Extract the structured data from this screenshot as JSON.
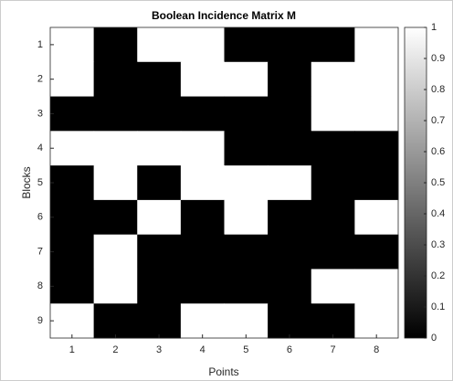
{
  "chart_data": {
    "type": "heatmap",
    "title": "Boolean Incidence Matrix M",
    "xlabel": "Points",
    "ylabel": "Blocks",
    "xticks": [
      1,
      2,
      3,
      4,
      5,
      6,
      7,
      8
    ],
    "yticks": [
      1,
      2,
      3,
      4,
      5,
      6,
      7,
      8,
      9
    ],
    "xlim": [
      0.5,
      8.5
    ],
    "ylim": [
      0.5,
      9.5
    ],
    "y_reversed": true,
    "values": [
      [
        1,
        0,
        1,
        1,
        0,
        0,
        0,
        1
      ],
      [
        1,
        0,
        0,
        1,
        1,
        0,
        1,
        1
      ],
      [
        0,
        0,
        0,
        0,
        0,
        0,
        1,
        1
      ],
      [
        1,
        1,
        1,
        1,
        0,
        0,
        0,
        0
      ],
      [
        0,
        1,
        0,
        1,
        1,
        1,
        0,
        0
      ],
      [
        0,
        0,
        1,
        0,
        1,
        0,
        0,
        1
      ],
      [
        0,
        1,
        0,
        0,
        0,
        0,
        0,
        0
      ],
      [
        0,
        1,
        0,
        0,
        0,
        0,
        1,
        1
      ],
      [
        1,
        0,
        0,
        1,
        1,
        0,
        0,
        1
      ]
    ],
    "colormap": [
      "#000000",
      "#ffffff"
    ],
    "clim": [
      0,
      1
    ],
    "cticks": [
      0,
      0.1,
      0.2,
      0.3,
      0.4,
      0.5,
      0.6,
      0.7,
      0.8,
      0.9,
      1
    ]
  }
}
